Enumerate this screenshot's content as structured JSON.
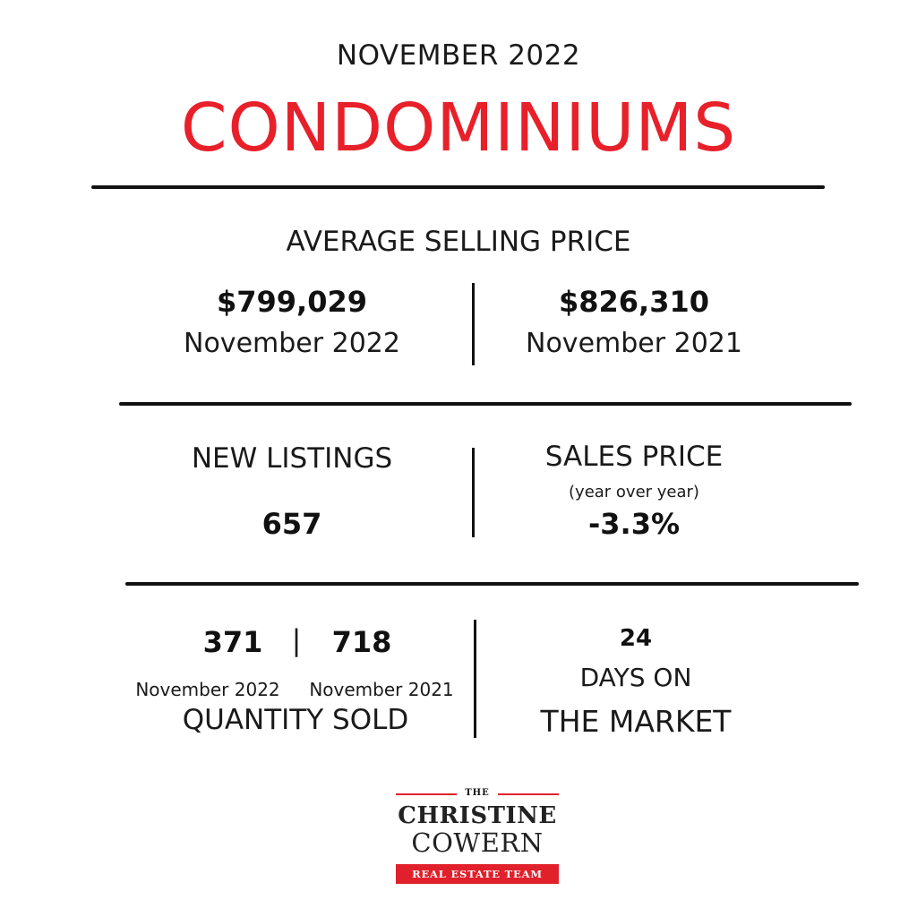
{
  "header": {
    "period": "NOVEMBER 2022",
    "title": "CONDOMINIUMS"
  },
  "average_selling_price": {
    "title": "AVERAGE SELLING PRICE",
    "current": {
      "value": "$799,029",
      "label": "November 2022"
    },
    "previous": {
      "value": "$826,310",
      "label": "November 2021"
    }
  },
  "new_listings": {
    "title": "NEW LISTINGS",
    "value": "657"
  },
  "sales_price": {
    "title": "SALES PRICE",
    "subtitle": "(year over year)",
    "value": "-3.3%"
  },
  "quantity_sold": {
    "current_value": "371",
    "separator": "|",
    "previous_value": "718",
    "current_label": "November 2022",
    "previous_label": "November 2021",
    "title": "QUANTITY SOLD"
  },
  "days_on_market": {
    "value": "24",
    "line1": "DAYS ON",
    "line2": "THE MARKET"
  },
  "logo": {
    "the": "THE",
    "line1": "CHRISTINE",
    "line2": "COWERN",
    "band": "REAL ESTATE TEAM",
    "accent_color": "#e0202a"
  },
  "colors": {
    "title_red": "#e8202a",
    "text": "#111111"
  }
}
